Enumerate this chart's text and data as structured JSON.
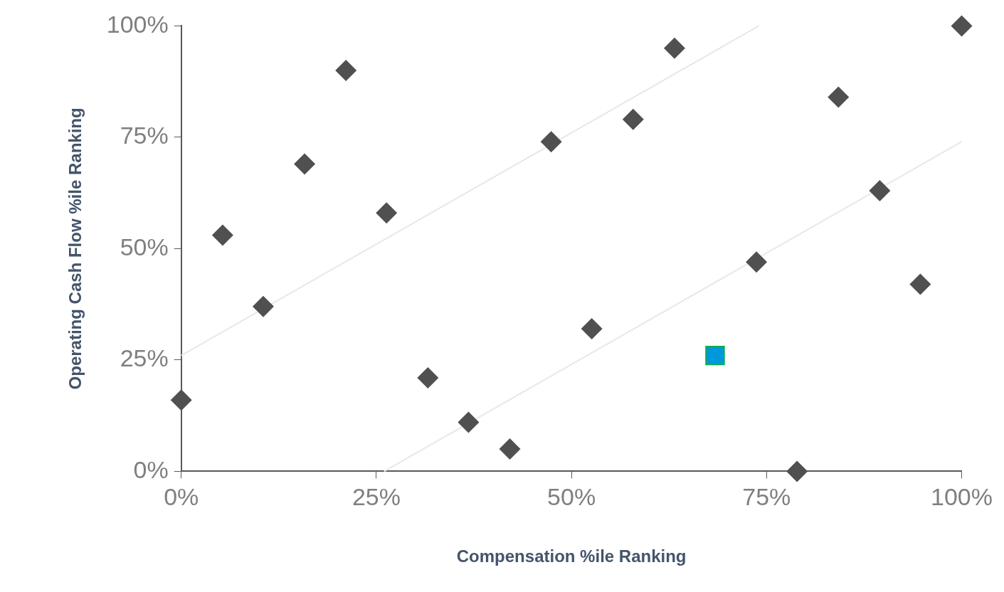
{
  "chart_data": {
    "type": "scatter",
    "xlabel": "Compensation %ile Ranking",
    "ylabel": "Operating Cash Flow %ile Ranking",
    "xlim": [
      0,
      100
    ],
    "ylim": [
      0,
      100
    ],
    "xticks": [
      {
        "value": 0,
        "label": "0%"
      },
      {
        "value": 25,
        "label": "25%"
      },
      {
        "value": 50,
        "label": "50%"
      },
      {
        "value": 75,
        "label": "75%"
      },
      {
        "value": 100,
        "label": "100%"
      }
    ],
    "yticks": [
      {
        "value": 0,
        "label": "0%"
      },
      {
        "value": 25,
        "label": "25%"
      },
      {
        "value": 50,
        "label": "50%"
      },
      {
        "value": 75,
        "label": "75%"
      },
      {
        "value": 100,
        "label": "100%"
      }
    ],
    "grid": false,
    "legend": false,
    "series": [
      {
        "type": "line",
        "color": "#e8e8e8",
        "marker": "none",
        "x": [
          0,
          74
        ],
        "values": [
          26,
          100
        ]
      },
      {
        "type": "line",
        "color": "#e8e8e8",
        "marker": "none",
        "x": [
          26,
          100
        ],
        "values": [
          0,
          74
        ]
      },
      {
        "type": "scatter",
        "color": "#505050",
        "marker": "diamond",
        "x": [
          0,
          5.3,
          10.5,
          15.8,
          21.1,
          26.3,
          31.6,
          36.8,
          42.1,
          47.4,
          52.6,
          57.9,
          63.2,
          73.7,
          78.9,
          84.2,
          89.5,
          94.7,
          100
        ],
        "values": [
          16,
          53,
          37,
          69,
          90,
          58,
          21,
          11,
          5,
          74,
          32,
          79,
          95,
          47,
          0,
          84,
          63,
          42,
          100
        ]
      },
      {
        "type": "scatter",
        "color": "#0098dc",
        "marker": "square",
        "x": [
          68.4
        ],
        "values": [
          26
        ]
      }
    ]
  }
}
